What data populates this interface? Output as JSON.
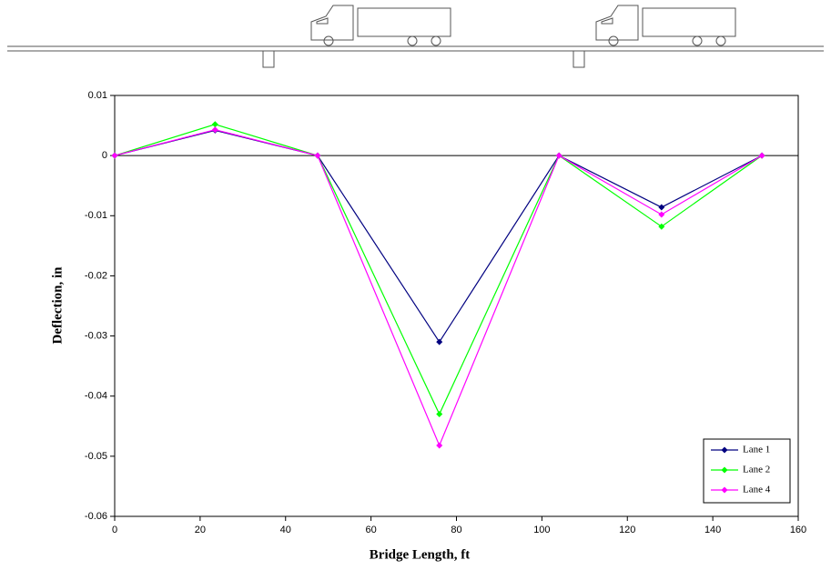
{
  "chart_data": {
    "type": "line",
    "x": [
      0,
      23.5,
      47.5,
      76,
      104,
      128,
      151.5
    ],
    "series": [
      {
        "name": "Lane 1",
        "color": "#000080",
        "values": [
          0,
          0.0042,
          0,
          -0.031,
          0,
          -0.0086,
          0
        ]
      },
      {
        "name": "Lane 2",
        "color": "#00ff00",
        "values": [
          0,
          0.0052,
          0,
          -0.043,
          0,
          -0.0118,
          0
        ]
      },
      {
        "name": "Lane 4",
        "color": "#ff00ff",
        "values": [
          0,
          0.0043,
          0,
          -0.0482,
          0,
          -0.0098,
          0
        ]
      }
    ],
    "xlabel": "Bridge Length, ft",
    "ylabel": "Deflection, in",
    "xlim": [
      0,
      160
    ],
    "xticks": [
      0,
      20,
      40,
      60,
      80,
      100,
      120,
      140,
      160
    ],
    "ylim": [
      -0.06,
      0.01
    ],
    "yticks": [
      0.01,
      0,
      -0.01,
      -0.02,
      -0.03,
      -0.04,
      -0.05,
      -0.06
    ],
    "grid": false,
    "legend": "lower right"
  }
}
